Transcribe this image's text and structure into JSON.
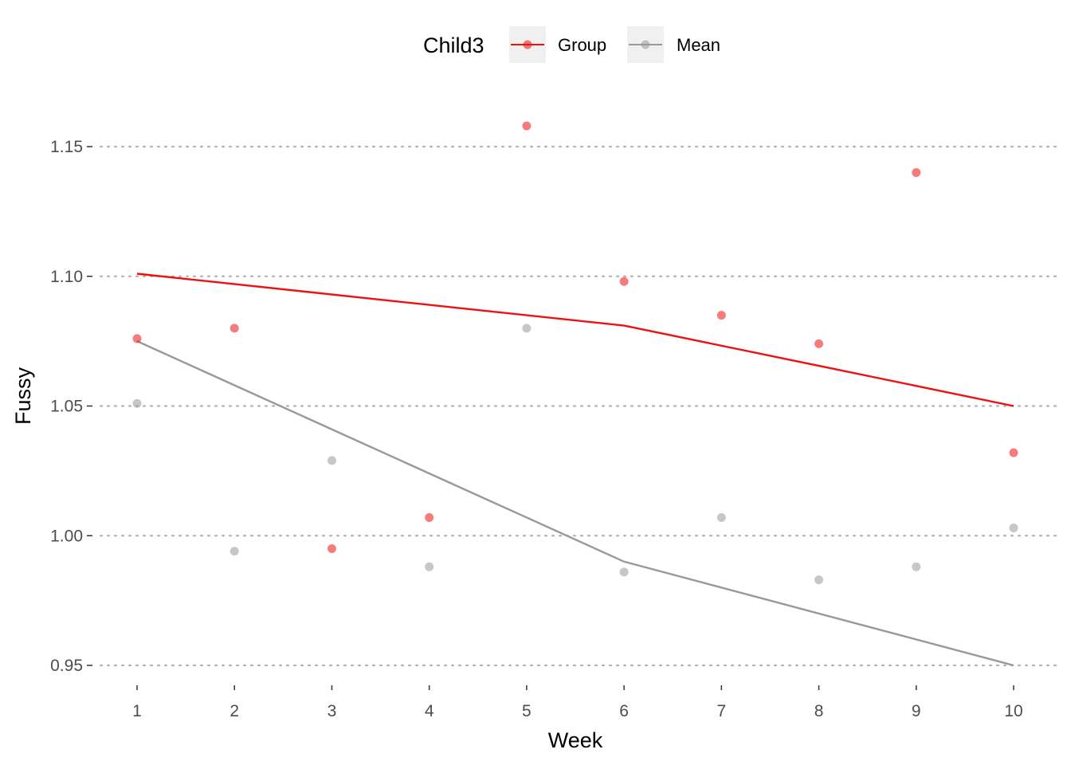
{
  "chart_data": {
    "type": "line",
    "xlabel": "Week",
    "ylabel": "Fussy",
    "x_ticks": [
      "1",
      "2",
      "3",
      "4",
      "5",
      "6",
      "7",
      "8",
      "9",
      "10"
    ],
    "y_ticks": [
      "0.95",
      "1.00",
      "1.05",
      "1.10",
      "1.15"
    ],
    "xlim": [
      0.6,
      10.4
    ],
    "ylim": [
      0.94,
      1.165
    ],
    "grid": "horizontal dotted",
    "legend": {
      "title": "Child3",
      "placement": "top",
      "entries": [
        "Group",
        "Mean"
      ]
    },
    "series": [
      {
        "name": "Group",
        "color": "#ee1111",
        "points": {
          "x": [
            1,
            2,
            3,
            4,
            5,
            6,
            7,
            8,
            9,
            10
          ],
          "y": [
            1.076,
            1.08,
            0.995,
            1.007,
            1.158,
            1.098,
            1.085,
            1.074,
            1.14,
            1.032
          ]
        },
        "trend_line": {
          "x": [
            1,
            6,
            10
          ],
          "y": [
            1.101,
            1.081,
            1.05
          ]
        }
      },
      {
        "name": "Mean",
        "color": "#999999",
        "points": {
          "x": [
            1,
            2,
            3,
            4,
            5,
            6,
            7,
            8,
            9,
            10
          ],
          "y": [
            1.051,
            0.994,
            1.029,
            0.988,
            1.08,
            0.986,
            1.007,
            0.983,
            0.988,
            1.003
          ]
        },
        "trend_line": {
          "x": [
            1,
            6,
            10
          ],
          "y": [
            1.075,
            0.99,
            0.95
          ]
        }
      }
    ]
  }
}
